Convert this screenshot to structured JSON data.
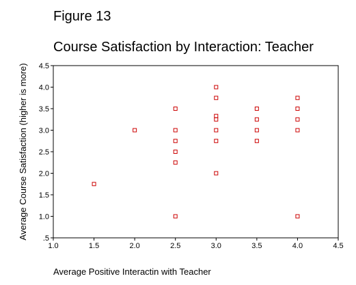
{
  "figure_label": "Figure 13",
  "chart_data": {
    "type": "scatter",
    "title": "Course Satisfaction by Interaction: Teacher",
    "xlabel": "Average Positive Interactin with Teacher",
    "ylabel": "Average Course Satisfaction (higher is more)",
    "xlim": [
      1.0,
      4.5
    ],
    "ylim": [
      0.5,
      4.5
    ],
    "x_ticks": [
      "1.0",
      "1.5",
      "2.0",
      "2.5",
      "3.0",
      "3.5",
      "4.0",
      "4.5"
    ],
    "y_ticks": [
      ".5",
      "1.0",
      "1.5",
      "2.0",
      "2.5",
      "3.0",
      "3.5",
      "4.0",
      "4.5"
    ],
    "grid": false,
    "marker_color": "#cc0000",
    "points": [
      {
        "x": 1.5,
        "y": 1.75
      },
      {
        "x": 2.0,
        "y": 3.0
      },
      {
        "x": 2.5,
        "y": 3.5
      },
      {
        "x": 2.5,
        "y": 3.0
      },
      {
        "x": 2.5,
        "y": 2.75
      },
      {
        "x": 2.5,
        "y": 2.5
      },
      {
        "x": 2.5,
        "y": 2.25
      },
      {
        "x": 2.5,
        "y": 1.0
      },
      {
        "x": 3.0,
        "y": 4.0
      },
      {
        "x": 3.0,
        "y": 3.75
      },
      {
        "x": 3.0,
        "y": 3.33
      },
      {
        "x": 3.0,
        "y": 3.25
      },
      {
        "x": 3.0,
        "y": 3.0
      },
      {
        "x": 3.0,
        "y": 2.75
      },
      {
        "x": 3.0,
        "y": 2.0
      },
      {
        "x": 3.5,
        "y": 3.5
      },
      {
        "x": 3.5,
        "y": 3.25
      },
      {
        "x": 3.5,
        "y": 3.0
      },
      {
        "x": 3.5,
        "y": 2.75
      },
      {
        "x": 4.0,
        "y": 3.75
      },
      {
        "x": 4.0,
        "y": 3.5
      },
      {
        "x": 4.0,
        "y": 3.25
      },
      {
        "x": 4.0,
        "y": 3.0
      },
      {
        "x": 4.0,
        "y": 1.0
      }
    ]
  }
}
